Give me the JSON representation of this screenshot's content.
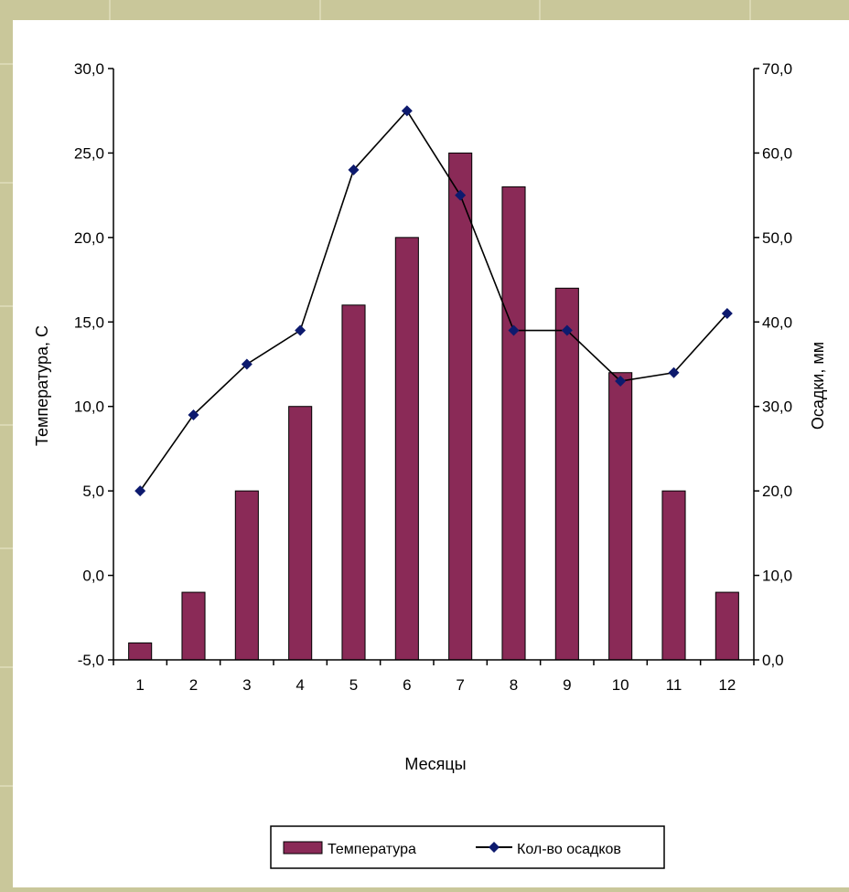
{
  "chart_data": {
    "type": "bar",
    "categories": [
      "1",
      "2",
      "3",
      "4",
      "5",
      "6",
      "7",
      "8",
      "9",
      "10",
      "11",
      "12"
    ],
    "series": [
      {
        "name": "Температура",
        "type": "bar",
        "axis": "left",
        "color": "#8a2a57",
        "values": [
          -4.0,
          -1.0,
          5.0,
          10.0,
          16.0,
          20.0,
          25.0,
          23.0,
          17.0,
          12.0,
          5.0,
          -1.0
        ]
      },
      {
        "name": "Кол-во осадков",
        "type": "line",
        "axis": "right",
        "color": "#0d1a6e",
        "values": [
          20.0,
          29.0,
          35.0,
          39.0,
          58.0,
          65.0,
          55.0,
          39.0,
          39.0,
          33.0,
          34.0,
          41.0
        ]
      }
    ],
    "xlabel": "Месяцы",
    "ylabel": "Температура, С",
    "ylabel_right": "Осадки, мм",
    "ylim": [
      -5.0,
      30.0
    ],
    "ylim_right": [
      0.0,
      70.0
    ],
    "yticks": [
      "-5,0",
      "0,0",
      "5,0",
      "10,0",
      "15,0",
      "20,0",
      "25,0",
      "30,0"
    ],
    "yticks_right": [
      "0,0",
      "10,0",
      "20,0",
      "30,0",
      "40,0",
      "50,0",
      "60,0",
      "70,0"
    ],
    "grid": false,
    "legend": "bottom"
  }
}
